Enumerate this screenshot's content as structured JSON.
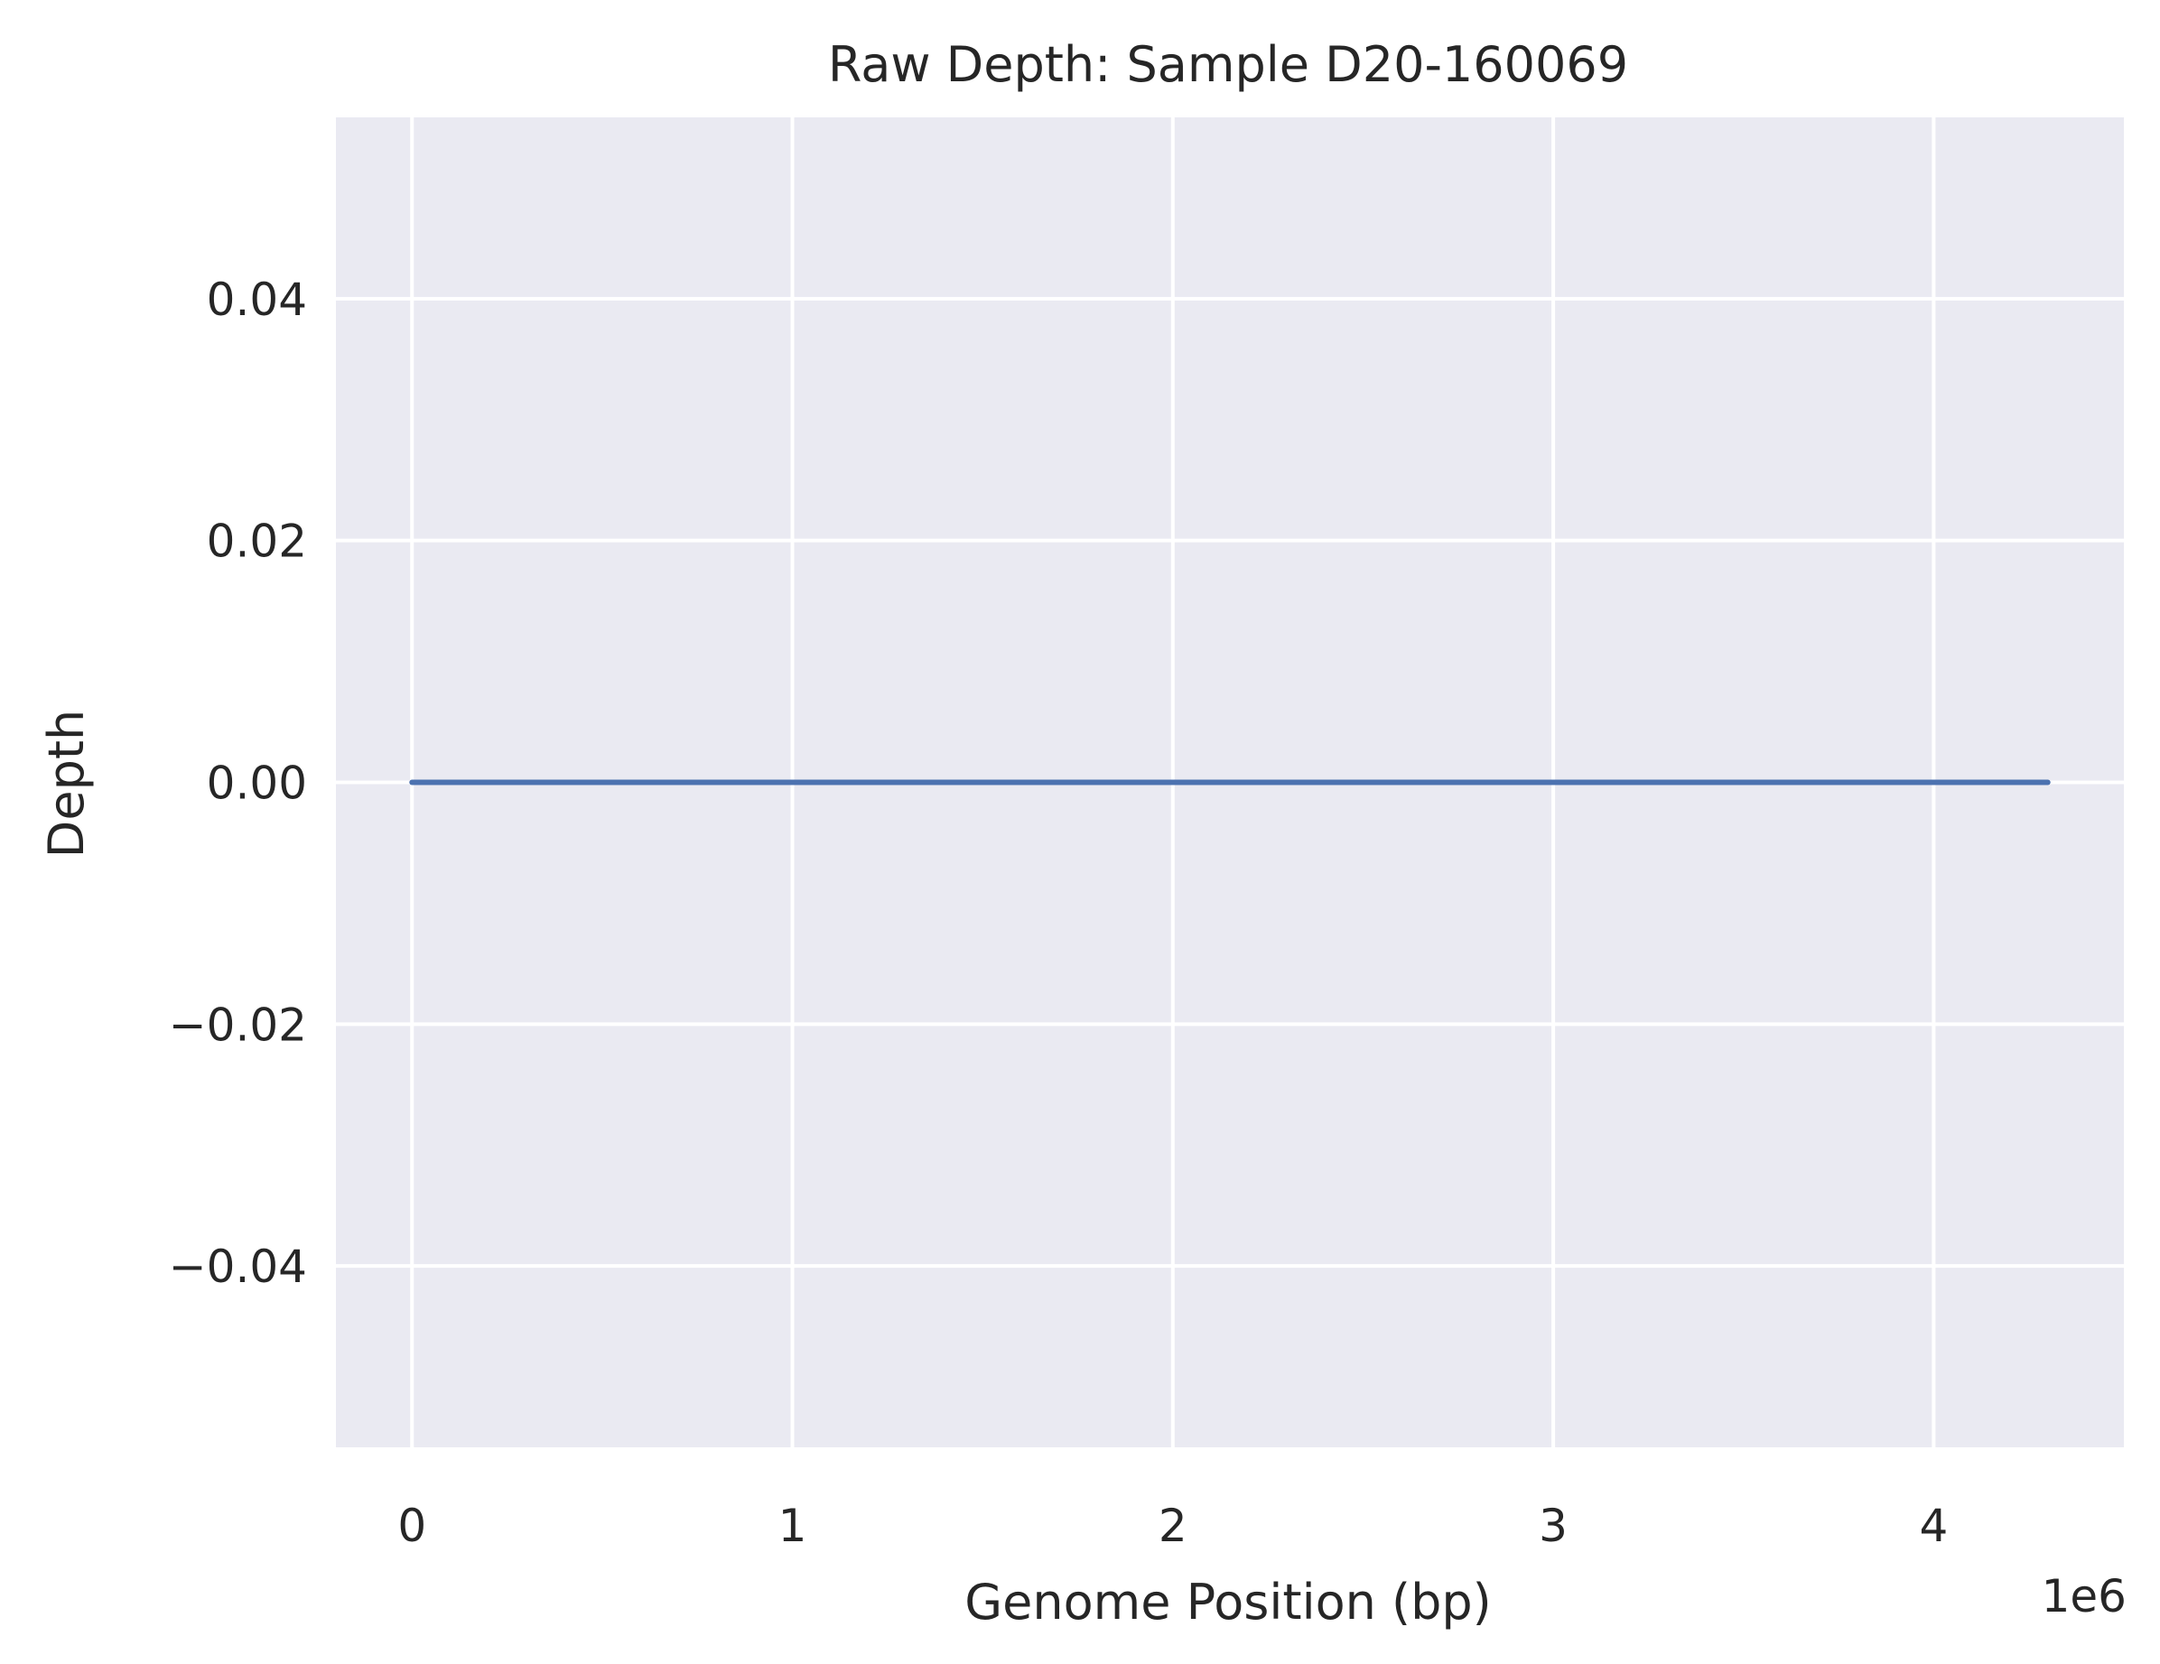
{
  "chart_data": {
    "type": "line",
    "title": "Raw Depth: Sample D20-160069",
    "xlabel": "Genome Position (bp)",
    "ylabel": "Depth",
    "x_offset_label": "1e6",
    "xlim": [
      -0.2,
      4.5
    ],
    "ylim": [
      -0.055,
      0.055
    ],
    "x_ticks": [
      {
        "value": 0,
        "label": "0"
      },
      {
        "value": 1,
        "label": "1"
      },
      {
        "value": 2,
        "label": "2"
      },
      {
        "value": 3,
        "label": "3"
      },
      {
        "value": 4,
        "label": "4"
      }
    ],
    "y_ticks": [
      {
        "value": 0.04,
        "label": "0.04"
      },
      {
        "value": 0.02,
        "label": "0.02"
      },
      {
        "value": 0.0,
        "label": "0.00"
      },
      {
        "value": -0.02,
        "label": "−0.02"
      },
      {
        "value": -0.04,
        "label": "−0.04"
      }
    ],
    "grid": true,
    "background_color": "#eaeaf2",
    "grid_color": "#ffffff",
    "series": [
      {
        "color": "#4c72b0",
        "x": [
          0,
          4.3
        ],
        "y": [
          0,
          0
        ]
      }
    ]
  }
}
